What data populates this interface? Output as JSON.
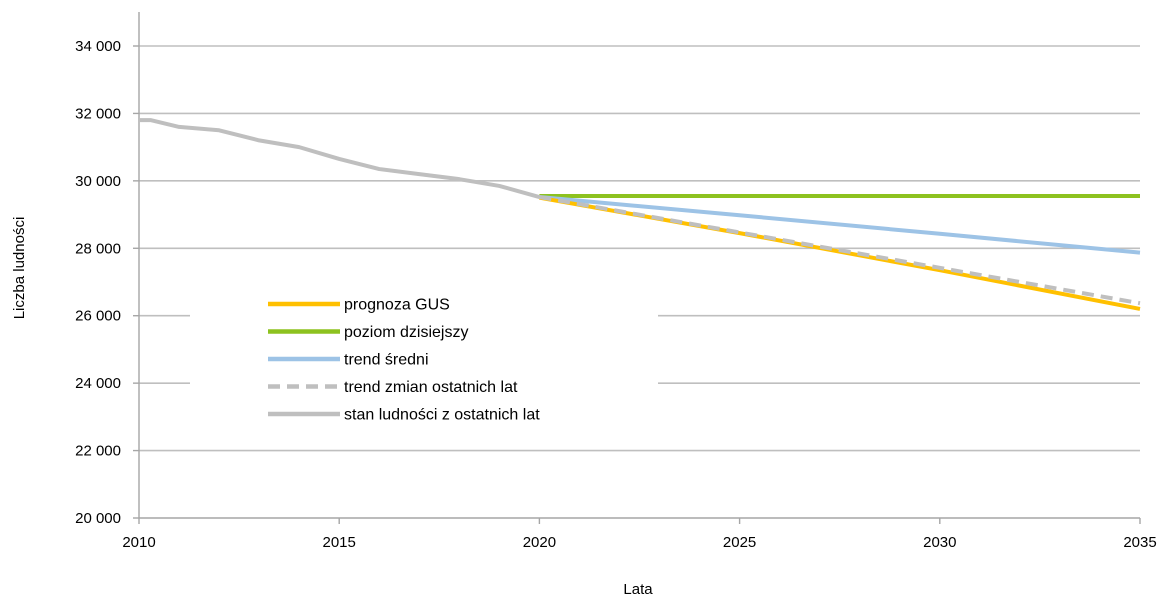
{
  "chart_data": {
    "type": "line",
    "title": "",
    "xlabel": "Lata",
    "ylabel": "Liczba ludności",
    "xlim": [
      2010,
      2035
    ],
    "ylim": [
      20000,
      34000
    ],
    "x_ticks": [
      2010,
      2015,
      2020,
      2025,
      2030,
      2035
    ],
    "y_ticks": [
      20000,
      22000,
      24000,
      26000,
      28000,
      30000,
      32000,
      34000
    ],
    "x_tick_labels": [
      "2010",
      "2015",
      "2020",
      "2025",
      "2030",
      "2035"
    ],
    "y_tick_labels": [
      "20 000",
      "22 000",
      "24 000",
      "26 000",
      "28 000",
      "30 000",
      "32 000",
      "34 000"
    ],
    "grid": true,
    "legend_position": "left-center",
    "series": [
      {
        "name": "prognoza GUS",
        "color": "#FFC000",
        "style": "solid",
        "x": [
          2020,
          2025,
          2030,
          2035
        ],
        "y": [
          29500,
          28450,
          27350,
          26200
        ]
      },
      {
        "name": "poziom dzisiejszy",
        "color": "#8DC21F",
        "style": "solid",
        "x": [
          2020,
          2035
        ],
        "y": [
          29550,
          29550
        ]
      },
      {
        "name": "trend średni",
        "color": "#9DC3E6",
        "style": "solid",
        "x": [
          2020,
          2025,
          2030,
          2035
        ],
        "y": [
          29520,
          28980,
          28430,
          27870
        ]
      },
      {
        "name": "trend zmian ostatnich lat",
        "color": "#BFBFBF",
        "style": "dashed",
        "x": [
          2020,
          2025,
          2030,
          2035
        ],
        "y": [
          29520,
          28470,
          27420,
          26370
        ]
      },
      {
        "name": "stan ludności z ostatnich lat",
        "color": "#BFBFBF",
        "style": "solid",
        "x": [
          2010,
          2010.3,
          2011,
          2012,
          2013,
          2014,
          2015,
          2016,
          2017,
          2018,
          2019,
          2020
        ],
        "y": [
          31800,
          31800,
          31600,
          31500,
          31200,
          31000,
          30650,
          30350,
          30200,
          30050,
          29850,
          29520
        ]
      }
    ]
  }
}
